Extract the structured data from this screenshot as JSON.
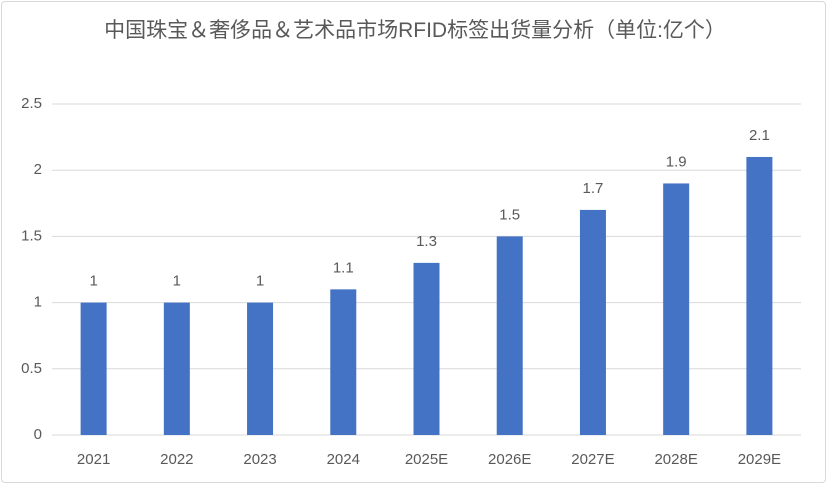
{
  "chart_data": {
    "type": "bar",
    "title": "中国珠宝＆奢侈品＆艺术品市场RFID标签出货量分析（单位:亿个）",
    "categories": [
      "2021",
      "2022",
      "2023",
      "2024",
      "2025E",
      "2026E",
      "2027E",
      "2028E",
      "2029E"
    ],
    "values": [
      1,
      1,
      1,
      1.1,
      1.3,
      1.5,
      1.7,
      1.9,
      2.1
    ],
    "color": "#4472c4",
    "ylim": [
      0,
      2.5
    ],
    "yticks": [
      0,
      0.5,
      1,
      1.5,
      2,
      2.5
    ],
    "grid": true
  }
}
